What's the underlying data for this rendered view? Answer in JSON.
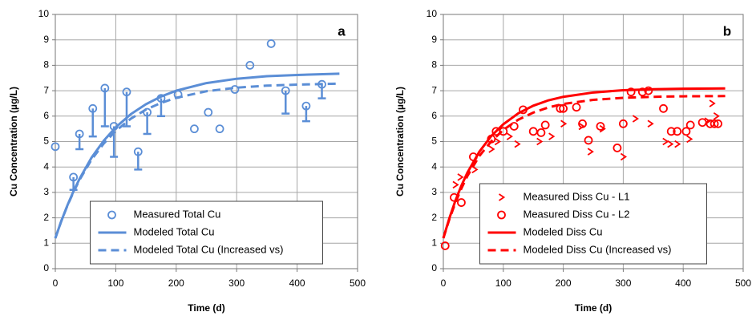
{
  "chart_data": [
    {
      "type": "scatter",
      "panel_label": "a",
      "x_label": "Time (d)",
      "y_label": "Cu Concentration (µg/L)",
      "xlim": [
        0,
        500
      ],
      "xticks": [
        0,
        100,
        200,
        300,
        400,
        500
      ],
      "ylim": [
        0,
        10
      ],
      "yticks": [
        0,
        1,
        2,
        3,
        4,
        5,
        6,
        7,
        8,
        9,
        10
      ],
      "grid": true,
      "legend": "lower center",
      "series": [
        {
          "name": "Measured Total Cu",
          "kind": "scatter",
          "marker": "circle",
          "color": "#5b8ed6",
          "x": [
            0,
            30,
            40,
            62,
            82,
            97,
            118,
            137,
            152,
            175,
            203,
            230,
            253,
            272,
            297,
            322,
            357,
            381,
            415,
            441
          ],
          "values": [
            4.8,
            3.6,
            5.3,
            6.3,
            7.1,
            5.6,
            6.95,
            4.6,
            6.15,
            6.7,
            6.85,
            5.5,
            6.15,
            5.5,
            7.05,
            8.0,
            8.85,
            7.0,
            6.4,
            7.25
          ],
          "errors": [
            null,
            0.5,
            0.6,
            1.1,
            1.5,
            1.2,
            1.35,
            0.7,
            0.85,
            0.7,
            null,
            null,
            null,
            null,
            null,
            null,
            null,
            0.9,
            0.6,
            0.55
          ]
        },
        {
          "name": "Modeled Total Cu",
          "kind": "line",
          "dashed": false,
          "color": "#5b8ed6",
          "x": [
            0,
            10,
            20,
            30,
            40,
            60,
            80,
            100,
            125,
            150,
            175,
            200,
            250,
            300,
            350,
            400,
            470
          ],
          "values": [
            1.2,
            1.88,
            2.49,
            3.04,
            3.53,
            4.37,
            5.03,
            5.56,
            6.08,
            6.47,
            6.77,
            7.0,
            7.3,
            7.47,
            7.57,
            7.62,
            7.67
          ]
        },
        {
          "name": "Modeled Total Cu (Increased vs)",
          "kind": "line",
          "dashed": true,
          "color": "#5b8ed6",
          "x": [
            0,
            10,
            20,
            30,
            40,
            60,
            80,
            100,
            125,
            150,
            175,
            200,
            250,
            300,
            350,
            400,
            470
          ],
          "values": [
            1.2,
            1.88,
            2.48,
            3.01,
            3.49,
            4.29,
            4.92,
            5.42,
            5.9,
            6.26,
            6.52,
            6.72,
            6.98,
            7.12,
            7.2,
            7.24,
            7.28
          ]
        }
      ]
    },
    {
      "type": "scatter",
      "panel_label": "b",
      "x_label": "Time (d)",
      "y_label": "Cu Concentration (µg/L)",
      "xlim": [
        0,
        500
      ],
      "xticks": [
        0,
        100,
        200,
        300,
        400,
        500
      ],
      "ylim": [
        0,
        10
      ],
      "yticks": [
        0,
        1,
        2,
        3,
        4,
        5,
        6,
        7,
        8,
        9,
        10
      ],
      "grid": true,
      "legend": "lower center",
      "series": [
        {
          "name": "Measured Diss Cu - L1",
          "kind": "scatter",
          "marker": "tick",
          "color": "#ff0000",
          "x": [
            20,
            28,
            52,
            80,
            90,
            110,
            123,
            160,
            180,
            200,
            230,
            245,
            265,
            300,
            320,
            345,
            370,
            378,
            390,
            410,
            440,
            448,
            455
          ],
          "values": [
            3.3,
            3.6,
            3.9,
            4.7,
            5.0,
            5.2,
            4.9,
            5.0,
            5.2,
            5.7,
            5.6,
            4.6,
            5.5,
            4.4,
            5.9,
            5.7,
            5.0,
            4.9,
            4.9,
            5.1,
            5.8,
            6.5,
            6.0
          ]
        },
        {
          "name": "Measured Diss Cu - L2",
          "kind": "scatter",
          "marker": "circle",
          "color": "#ff0000",
          "x": [
            3,
            18,
            30,
            50,
            80,
            88,
            100,
            118,
            133,
            150,
            163,
            170,
            195,
            200,
            222,
            232,
            242,
            262,
            290,
            300,
            313,
            332,
            342,
            367,
            380,
            390,
            405,
            412,
            432,
            445,
            452,
            458
          ],
          "values": [
            0.9,
            2.8,
            2.6,
            4.4,
            5.1,
            5.4,
            5.4,
            5.6,
            6.25,
            5.4,
            5.35,
            5.65,
            6.3,
            6.3,
            6.35,
            5.7,
            5.05,
            5.6,
            4.75,
            5.7,
            6.95,
            6.95,
            7.0,
            6.3,
            5.4,
            5.4,
            5.4,
            5.65,
            5.75,
            5.7,
            5.7,
            5.7
          ]
        },
        {
          "name": "Modeled Diss Cu",
          "kind": "line",
          "dashed": false,
          "color": "#ff0000",
          "x": [
            0,
            10,
            20,
            30,
            40,
            60,
            80,
            100,
            125,
            150,
            175,
            200,
            250,
            300,
            350,
            400,
            470
          ],
          "values": [
            1.2,
            1.98,
            2.67,
            3.26,
            3.77,
            4.6,
            5.22,
            5.68,
            6.11,
            6.41,
            6.62,
            6.76,
            6.93,
            7.02,
            7.06,
            7.08,
            7.09
          ]
        },
        {
          "name": "Modeled Diss Cu (Increased vs)",
          "kind": "line",
          "dashed": true,
          "color": "#ff0000",
          "x": [
            0,
            10,
            20,
            30,
            40,
            60,
            80,
            100,
            125,
            150,
            175,
            200,
            250,
            300,
            350,
            400,
            470
          ],
          "values": [
            1.2,
            1.94,
            2.59,
            3.15,
            3.64,
            4.43,
            5.01,
            5.46,
            5.86,
            6.14,
            6.34,
            6.48,
            6.64,
            6.72,
            6.76,
            6.78,
            6.79
          ]
        }
      ]
    }
  ]
}
